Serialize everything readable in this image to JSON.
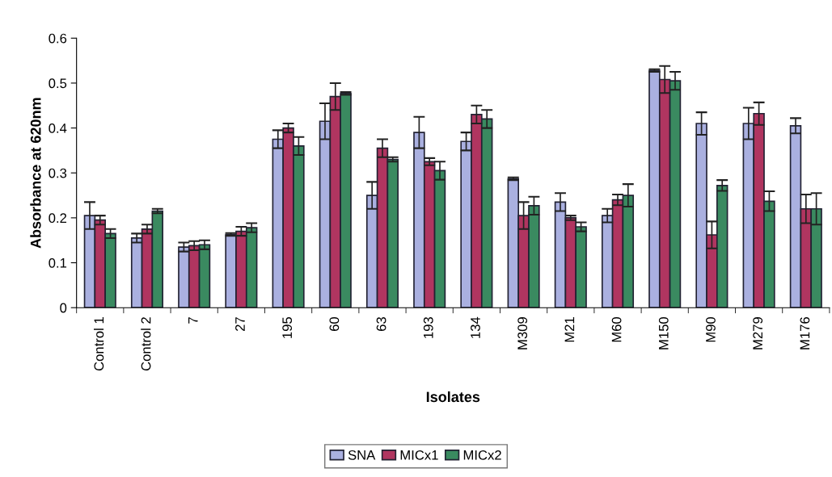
{
  "chart_data": {
    "type": "bar",
    "xlabel": "Isolates",
    "ylabel": "Absorbance at 620nm",
    "categories": [
      "Control 1",
      "Control 2",
      "7",
      "27",
      "195",
      "60",
      "63",
      "193",
      "134",
      "M309",
      "M21",
      "M60",
      "M150",
      "M90",
      "M279",
      "M176"
    ],
    "series": [
      {
        "name": "SNA",
        "color": "#aab0e0",
        "values": [
          0.205,
          0.155,
          0.135,
          0.163,
          0.375,
          0.415,
          0.25,
          0.39,
          0.37,
          0.287,
          0.235,
          0.205,
          0.528,
          0.41,
          0.41,
          0.405
        ],
        "errors": [
          0.03,
          0.01,
          0.01,
          0.003,
          0.02,
          0.04,
          0.03,
          0.035,
          0.02,
          0.003,
          0.02,
          0.015,
          0.003,
          0.025,
          0.035,
          0.017
        ]
      },
      {
        "name": "MICx1",
        "color": "#b03560",
        "values": [
          0.195,
          0.175,
          0.138,
          0.17,
          0.4,
          0.47,
          0.355,
          0.325,
          0.43,
          0.205,
          0.2,
          0.24,
          0.508,
          0.162,
          0.432,
          0.22
        ],
        "errors": [
          0.01,
          0.01,
          0.01,
          0.01,
          0.01,
          0.03,
          0.02,
          0.008,
          0.02,
          0.03,
          0.005,
          0.012,
          0.03,
          0.03,
          0.025,
          0.032
        ]
      },
      {
        "name": "MICx2",
        "color": "#3a8a60",
        "values": [
          0.165,
          0.215,
          0.14,
          0.178,
          0.36,
          0.477,
          0.33,
          0.305,
          0.42,
          0.227,
          0.18,
          0.25,
          0.505,
          0.272,
          0.237,
          0.22
        ],
        "errors": [
          0.01,
          0.005,
          0.01,
          0.01,
          0.02,
          0.003,
          0.005,
          0.02,
          0.02,
          0.02,
          0.01,
          0.025,
          0.02,
          0.012,
          0.022,
          0.035
        ]
      }
    ],
    "ylim": [
      0,
      0.6
    ],
    "yticks": [
      0,
      0.1,
      0.2,
      0.3,
      0.4,
      0.5,
      0.6
    ],
    "grid": false,
    "legend": "bottom"
  }
}
